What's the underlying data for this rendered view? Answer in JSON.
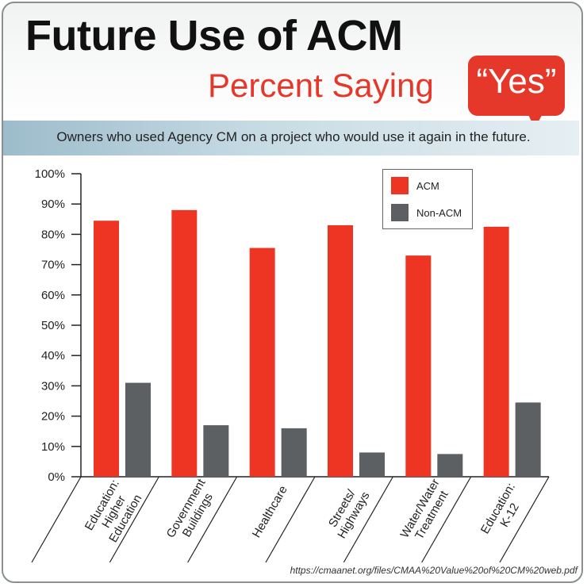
{
  "header": {
    "title": "Future Use of ACM",
    "subtitle": "Percent Saying",
    "bubble_text": "“Yes”",
    "description": "Owners who used Agency CM on a project who would use it again in the future."
  },
  "source": "https://cmaanet.org/files/CMAA%20Value%20of%20CM%20web.pdf",
  "colors": {
    "acm": "#ee3524",
    "non_acm": "#5c6062",
    "accent": "#e5372a"
  },
  "chart_data": {
    "type": "bar",
    "categories": [
      [
        "Education:",
        "Higher",
        "Education"
      ],
      [
        "Government",
        "Buildings"
      ],
      [
        "Healthcare"
      ],
      [
        "Streets/",
        "Highways"
      ],
      [
        "Water/Water",
        "Treatment"
      ],
      [
        "Education:",
        "K-12"
      ]
    ],
    "series": [
      {
        "name": "ACM",
        "values": [
          84.5,
          88,
          75.5,
          83,
          73,
          82.5
        ]
      },
      {
        "name": "Non-ACM",
        "values": [
          31,
          17,
          16,
          8,
          7.5,
          24.5
        ]
      }
    ],
    "yticks": [
      "0%",
      "10%",
      "20%",
      "30%",
      "40%",
      "50%",
      "60%",
      "70%",
      "80%",
      "90%",
      "100%"
    ],
    "ylim": [
      0,
      100
    ],
    "legend_position": "top-right",
    "grid": false
  }
}
